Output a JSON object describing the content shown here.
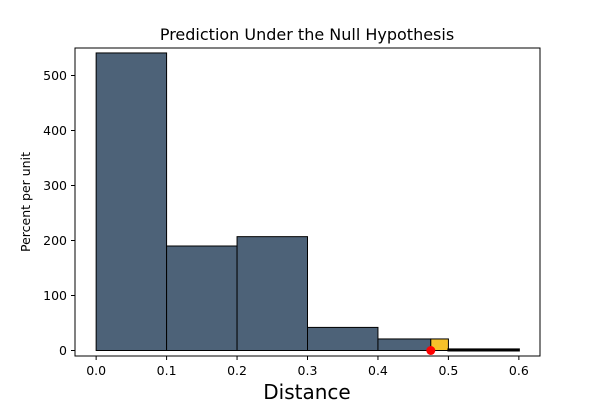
{
  "chart_data": {
    "type": "bar",
    "title": "Prediction Under the Null Hypothesis",
    "xlabel": "Distance",
    "ylabel": "Percent per unit",
    "xlim": [
      -0.03,
      0.63
    ],
    "ylim": [
      -10,
      550
    ],
    "xticks": [
      0.0,
      0.1,
      0.2,
      0.3,
      0.4,
      0.5,
      0.6
    ],
    "xtick_labels": [
      "0.0",
      "0.1",
      "0.2",
      "0.3",
      "0.4",
      "0.5",
      "0.6"
    ],
    "yticks": [
      0,
      100,
      200,
      300,
      400,
      500
    ],
    "ytick_labels": [
      "0",
      "100",
      "200",
      "300",
      "400",
      "500"
    ],
    "bins": [
      {
        "left": 0.0,
        "right": 0.1,
        "value": 541
      },
      {
        "left": 0.1,
        "right": 0.2,
        "value": 190
      },
      {
        "left": 0.2,
        "right": 0.3,
        "value": 207
      },
      {
        "left": 0.3,
        "right": 0.4,
        "value": 42
      },
      {
        "left": 0.4,
        "right": 0.475,
        "value": 21
      },
      {
        "left": 0.475,
        "right": 0.5,
        "value": 21,
        "highlight": true
      },
      {
        "left": 0.5,
        "right": 0.6,
        "value": 2,
        "highlight_outline": true
      }
    ],
    "observed_point": {
      "x": 0.475,
      "y": 0
    },
    "grid": false,
    "colors": {
      "bar_fill": "#4d6278",
      "bar_edge": "#000000",
      "highlight_fill": "#f6c12a",
      "point": "#ff0000"
    }
  }
}
